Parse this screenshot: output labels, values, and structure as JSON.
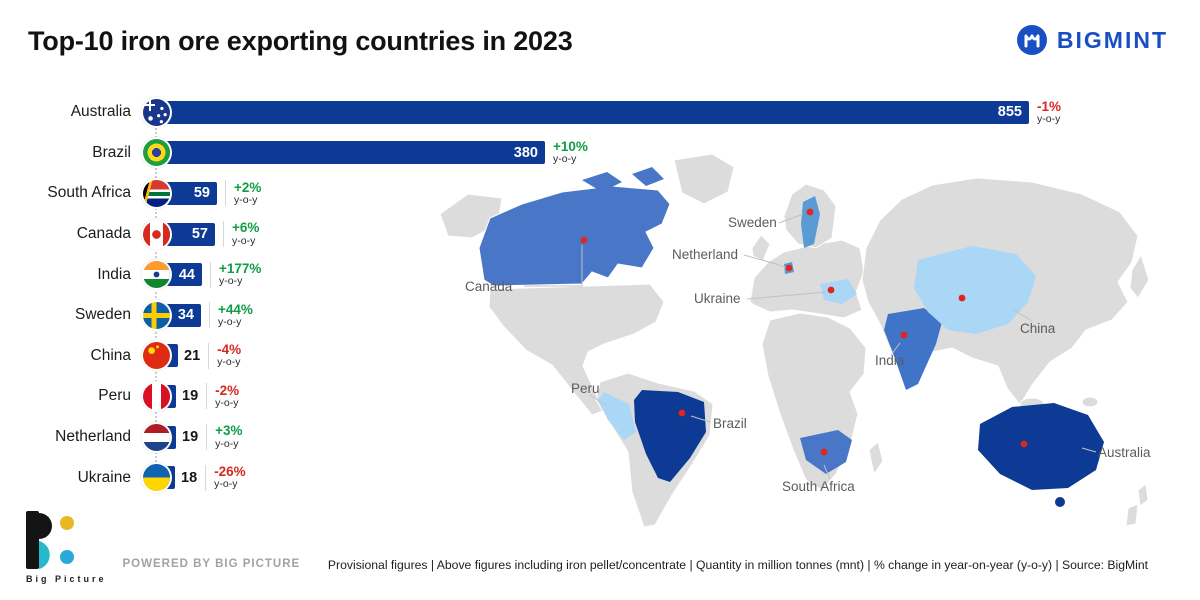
{
  "header": {
    "title": "Top-10 iron ore exporting countries in 2023",
    "brand": "BIGMINT"
  },
  "chart_data": {
    "type": "bar",
    "orientation": "horizontal",
    "title": "Top-10 iron ore exporting countries in 2023",
    "unit": "million tonnes (mnt)",
    "categories": [
      "Australia",
      "Brazil",
      "South Africa",
      "Canada",
      "India",
      "Sweden",
      "China",
      "Peru",
      "Netherland",
      "Ukraine"
    ],
    "values": [
      855,
      380,
      59,
      57,
      44,
      34,
      21,
      19,
      19,
      18
    ],
    "changes": [
      "-1%",
      "+10%",
      "+2%",
      "+6%",
      "+177%",
      "+44%",
      "-4%",
      "-2%",
      "+3%",
      "-26%"
    ],
    "change_suffix": "y-o-y",
    "flags": [
      "australia",
      "brazil",
      "south-africa",
      "canada",
      "india",
      "sweden",
      "china",
      "peru",
      "netherland",
      "ukraine"
    ],
    "xlim": [
      0,
      880
    ],
    "bar_color": "#0c3a94",
    "positive_color": "#0f9d45",
    "negative_color": "#d7281f",
    "legend_position": "none",
    "grid": false
  },
  "map": {
    "labels": [
      "Canada",
      "Sweden",
      "Netherland",
      "Ukraine",
      "China",
      "India",
      "Peru",
      "Brazil",
      "South Africa",
      "Australia"
    ],
    "colors": {
      "dark": "#0c3a94",
      "medium": "#4a76c8",
      "light": "#a9d7f5",
      "base_land": "#dcdcdc",
      "marker": "#e0251c"
    }
  },
  "footer": {
    "note": "Provisional figures | Above figures including iron pellet/concentrate | Quantity in million tonnes (mnt) | % change in year-on-year (y-o-y) | Source: BigMint",
    "powered_by": "POWERED BY BIG PICTURE",
    "logo_text": "Big Picture"
  }
}
